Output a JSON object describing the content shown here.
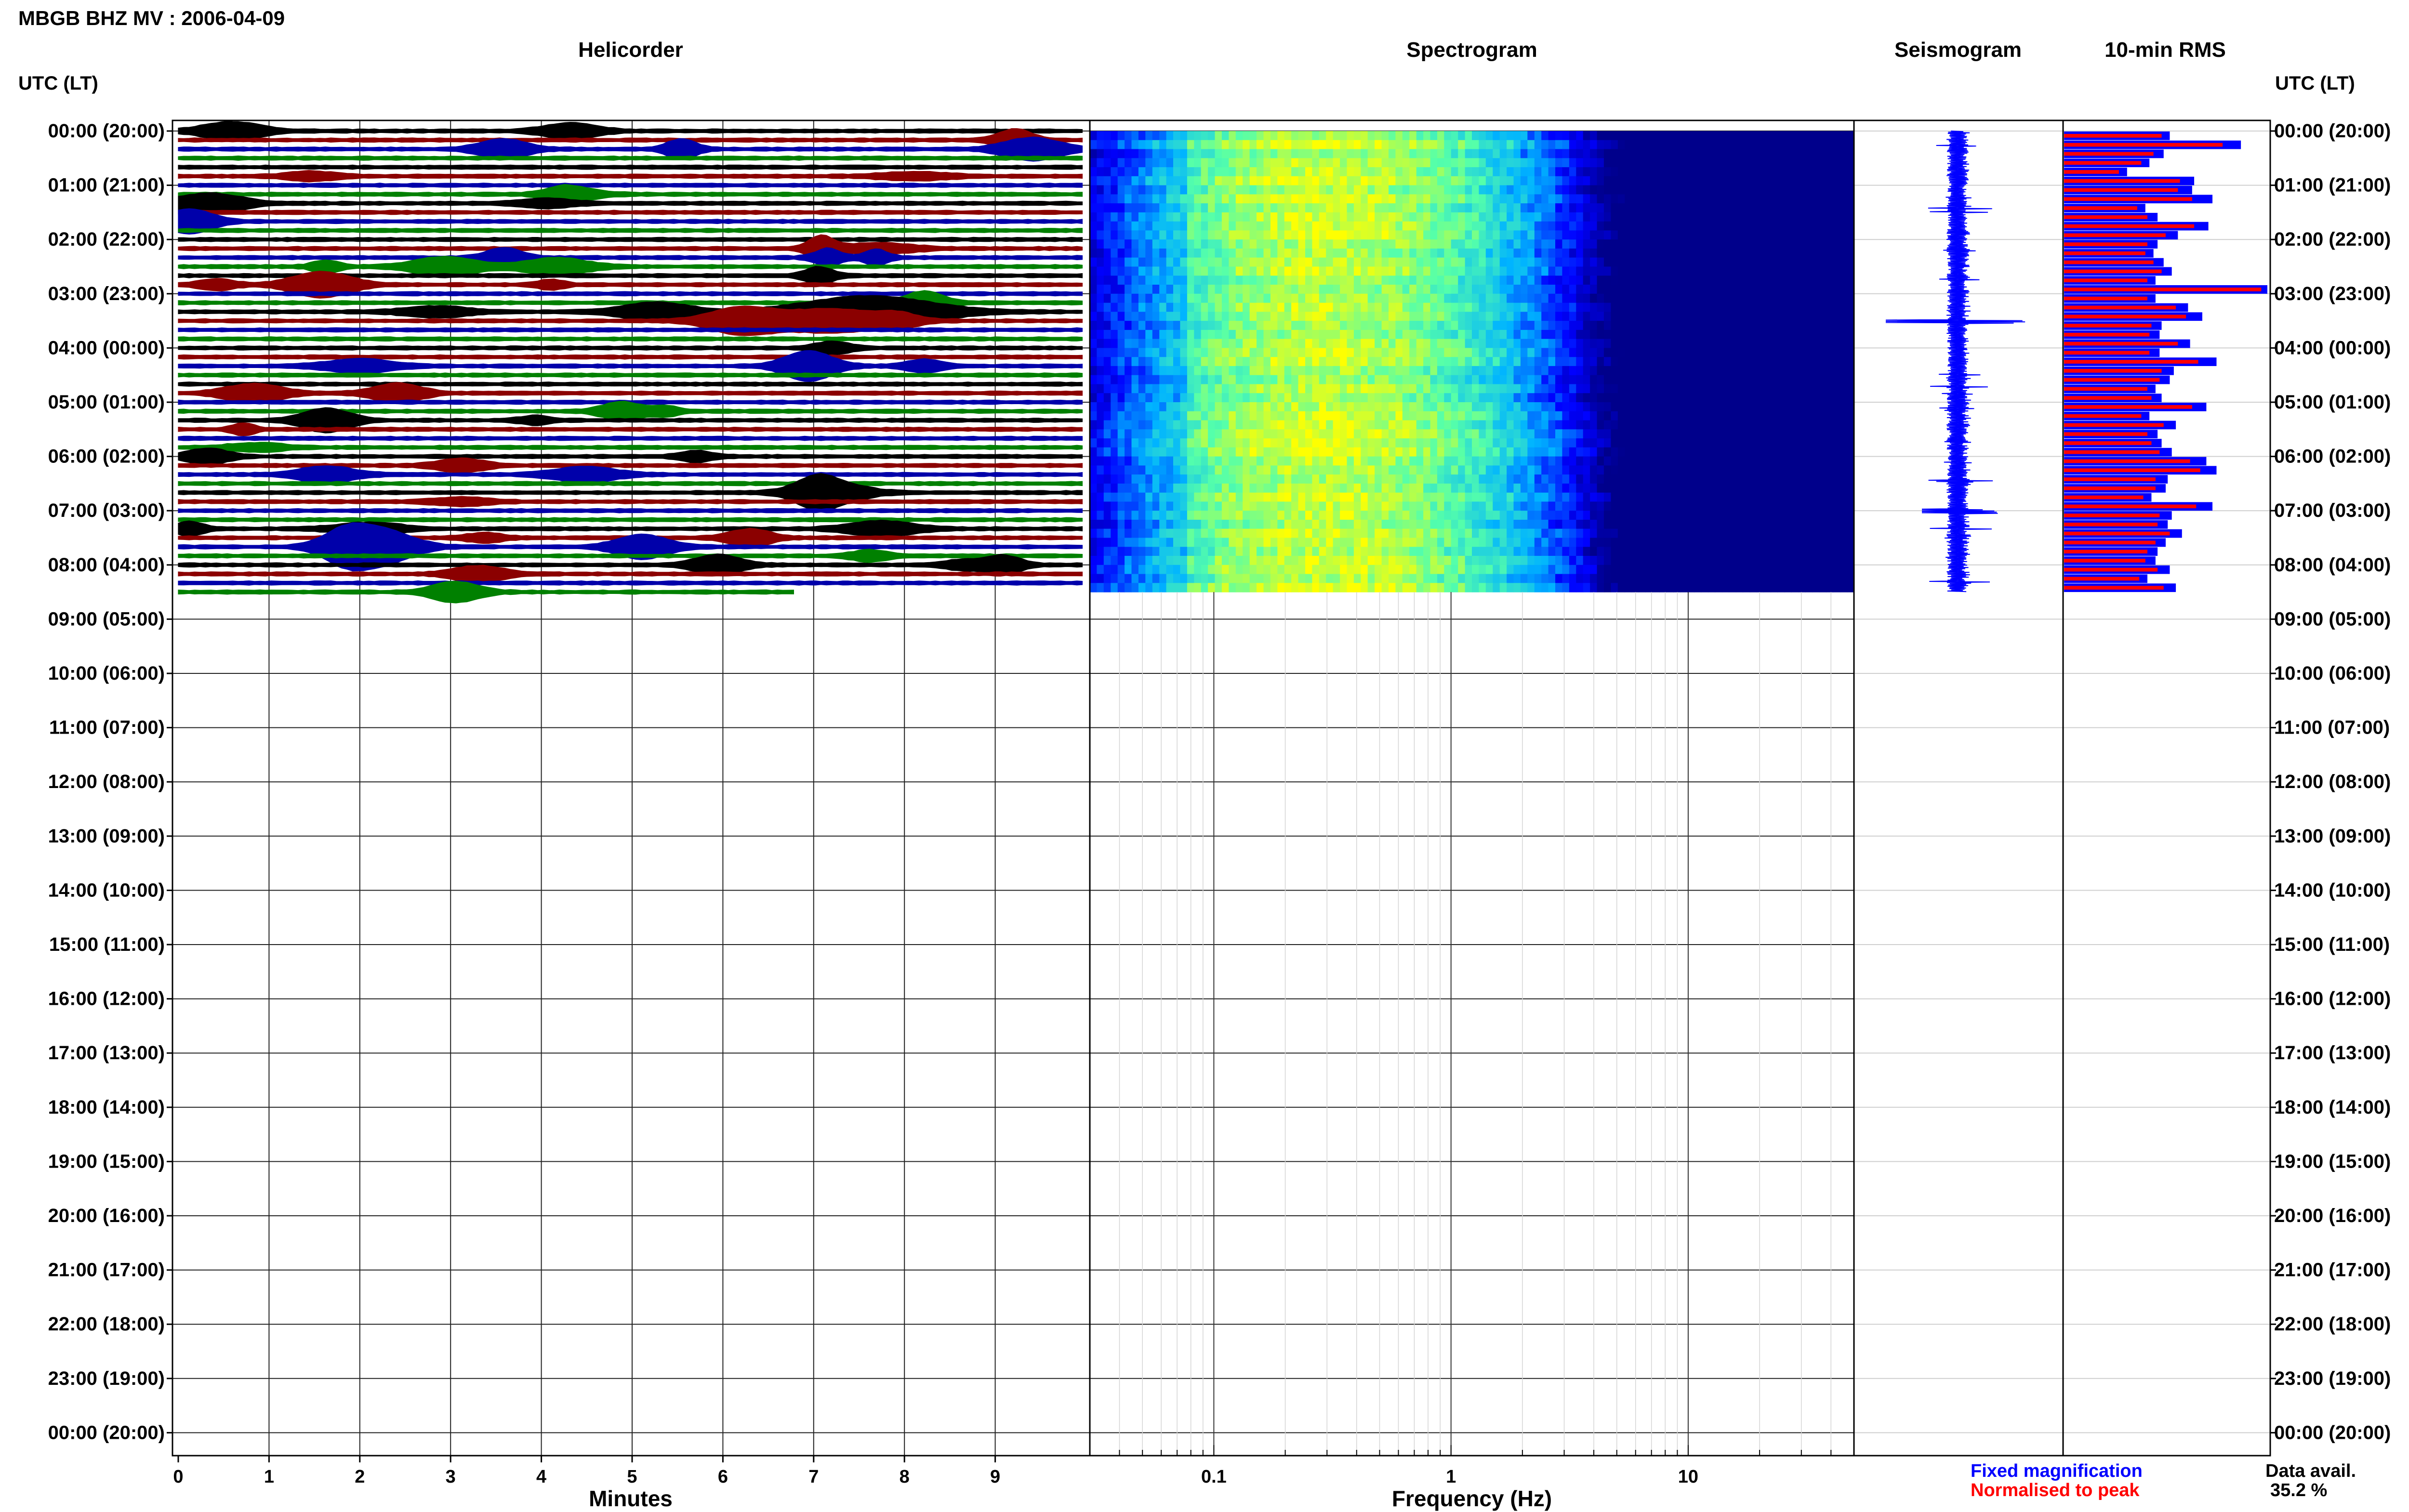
{
  "figure": {
    "title": "MBGB BHZ MV : 2006-04-09",
    "time_header_left": "UTC (LT)",
    "time_header_right": "UTC (LT)",
    "time_labels": [
      "00:00 (20:00)",
      "01:00 (21:00)",
      "02:00 (22:00)",
      "03:00 (23:00)",
      "04:00 (00:00)",
      "05:00 (01:00)",
      "06:00 (02:00)",
      "07:00 (03:00)",
      "08:00 (04:00)",
      "09:00 (05:00)",
      "10:00 (06:00)",
      "11:00 (07:00)",
      "12:00 (08:00)",
      "13:00 (09:00)",
      "14:00 (10:00)",
      "15:00 (11:00)",
      "16:00 (12:00)",
      "17:00 (13:00)",
      "18:00 (14:00)",
      "19:00 (15:00)",
      "20:00 (16:00)",
      "21:00 (17:00)",
      "22:00 (18:00)",
      "23:00 (19:00)",
      "00:00 (20:00)"
    ],
    "legend": {
      "fixed_label": "Fixed magnification",
      "normalised_label": "Normalised to peak",
      "fixed_color": "#0000ff",
      "normalised_color": "#ff0000"
    },
    "data_avail": {
      "label": "Data avail.",
      "value": "35.2 %"
    }
  },
  "chart_data": [
    {
      "type": "heatmap",
      "title": "Helicorder",
      "xlabel": "Minutes",
      "xticks": [
        "0",
        "1",
        "2",
        "3",
        "4",
        "5",
        "6",
        "7",
        "8",
        "9"
      ],
      "xlim": [
        0,
        10
      ],
      "trace_colors": [
        "#000000",
        "#8b0000",
        "#0000aa",
        "#008000"
      ],
      "lines_per_hour": 6,
      "recorded_hours": 8.5,
      "last_line_minutes": 6.8
    },
    {
      "type": "heatmap",
      "title": "Spectrogram",
      "xlabel": "Frequency (Hz)",
      "x_scale": "log",
      "xlim": [
        0.03,
        50
      ],
      "xticks": [
        "0.1",
        "1",
        "10"
      ],
      "colormap": [
        "#00008b",
        "#0000ff",
        "#00b4ff",
        "#55ffaa",
        "#ffff00"
      ],
      "peak_frequency_hz": 0.3,
      "recorded_hours": 8.5
    },
    {
      "type": "line",
      "title": "Seismogram",
      "color": "#0000ff",
      "recorded_hours": 8.5
    },
    {
      "type": "bar",
      "title": "10-min RMS",
      "series": [
        {
          "name": "Fixed magnification",
          "color": "#0000ff",
          "values": [
            0.52,
            0.87,
            0.49,
            0.42,
            0.31,
            0.64,
            0.63,
            0.73,
            0.4,
            0.46,
            0.71,
            0.56,
            0.46,
            0.44,
            0.49,
            0.53,
            0.45,
            1.0,
            0.45,
            0.61,
            0.68,
            0.48,
            0.47,
            0.62,
            0.47,
            0.75,
            0.54,
            0.52,
            0.45,
            0.48,
            0.7,
            0.42,
            0.55,
            0.46,
            0.48,
            0.53,
            0.7,
            0.75,
            0.51,
            0.5,
            0.43,
            0.73,
            0.53,
            0.51,
            0.58,
            0.5,
            0.46,
            0.45,
            0.52,
            0.41,
            0.55
          ]
        },
        {
          "name": "Normalised to peak",
          "color": "#ff0000",
          "values": [
            0.48,
            0.78,
            0.44,
            0.38,
            0.27,
            0.57,
            0.56,
            0.63,
            0.36,
            0.41,
            0.64,
            0.5,
            0.41,
            0.4,
            0.44,
            0.48,
            0.41,
            0.97,
            0.41,
            0.55,
            0.6,
            0.43,
            0.42,
            0.56,
            0.42,
            0.66,
            0.48,
            0.47,
            0.41,
            0.43,
            0.63,
            0.38,
            0.49,
            0.41,
            0.43,
            0.47,
            0.62,
            0.67,
            0.45,
            0.45,
            0.39,
            0.65,
            0.47,
            0.46,
            0.52,
            0.45,
            0.41,
            0.4,
            0.46,
            0.37,
            0.49
          ]
        }
      ],
      "xlim": [
        0,
        1
      ]
    }
  ]
}
